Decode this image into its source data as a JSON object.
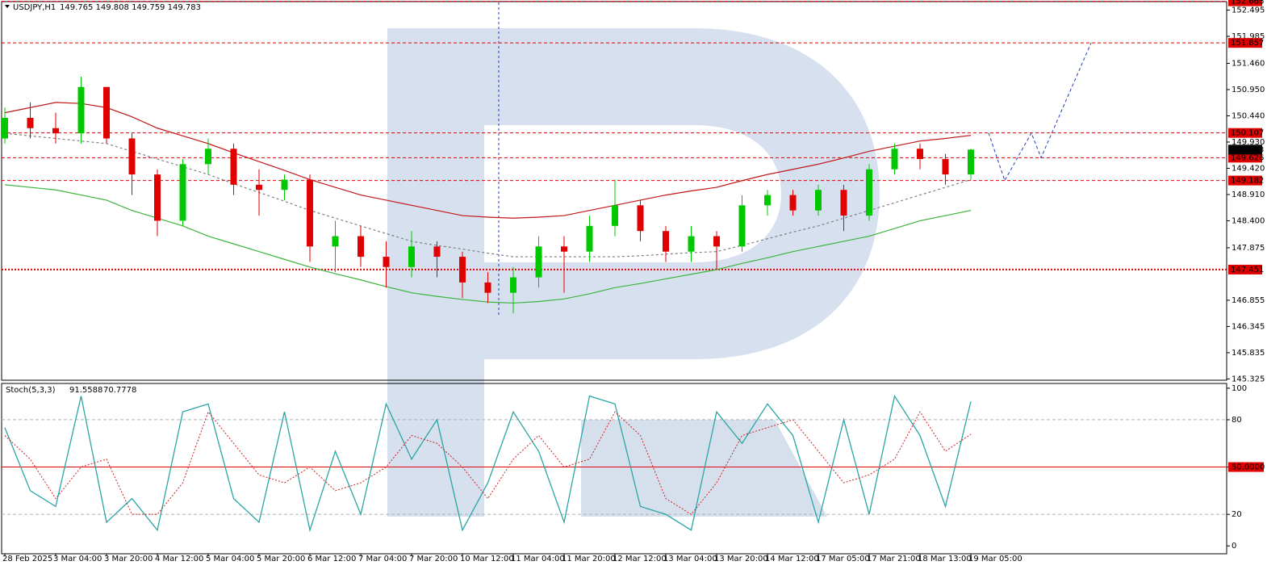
{
  "chart_data": {
    "type": "candlestick",
    "header": {
      "symbol": "USDJPY,H1",
      "quote": "149.765 149.808 149.759 149.783"
    },
    "categories": [
      "28 Feb 2025",
      null,
      "3 Mar 04:00",
      null,
      "3 Mar 20:00",
      null,
      "4 Mar 12:00",
      null,
      "5 Mar 04:00",
      null,
      "5 Mar 20:00",
      null,
      "6 Mar 12:00",
      null,
      "7 Mar 04:00",
      null,
      "7 Mar 20:00",
      null,
      "10 Mar 12:00",
      null,
      "11 Mar 04:00",
      null,
      "11 Mar 20:00",
      null,
      "12 Mar 12:00",
      null,
      "13 Mar 04:00",
      null,
      "13 Mar 20:00",
      null,
      "14 Mar 12:00",
      null,
      "17 Mar 05:00",
      null,
      "17 Mar 21:00",
      null,
      "18 Mar 13:00",
      null,
      "19 Mar 05:00"
    ],
    "open": [
      150.0,
      150.4,
      150.2,
      150.1,
      151.0,
      150.0,
      149.3,
      148.4,
      149.5,
      149.8,
      149.1,
      149.0,
      149.2,
      147.9,
      148.1,
      147.7,
      147.5,
      147.9,
      147.7,
      147.2,
      147.0,
      147.3,
      147.9,
      147.8,
      148.3,
      148.7,
      148.2,
      147.8,
      148.1,
      147.9,
      148.7,
      148.9,
      148.6,
      149.0,
      148.5,
      149.4,
      149.8,
      149.6,
      149.3
    ],
    "high": [
      150.6,
      150.7,
      150.5,
      151.2,
      151.0,
      150.1,
      149.4,
      149.6,
      150.0,
      149.9,
      149.4,
      149.3,
      149.3,
      148.4,
      148.3,
      148.0,
      148.2,
      148.0,
      147.8,
      147.4,
      147.5,
      148.1,
      148.1,
      148.5,
      149.2,
      148.8,
      148.3,
      148.3,
      148.2,
      148.9,
      149.0,
      149.0,
      149.1,
      149.1,
      149.5,
      149.9,
      149.9,
      149.7,
      149.8
    ],
    "low": [
      149.9,
      150.0,
      149.9,
      149.9,
      149.9,
      148.9,
      148.1,
      148.3,
      149.3,
      148.9,
      148.5,
      148.8,
      147.6,
      147.4,
      147.5,
      147.1,
      147.3,
      147.3,
      146.9,
      146.8,
      146.6,
      147.1,
      147.0,
      147.6,
      148.1,
      148.0,
      147.6,
      147.6,
      147.45,
      147.8,
      148.5,
      148.5,
      148.5,
      148.2,
      148.4,
      149.3,
      149.4,
      149.1,
      149.2
    ],
    "close": [
      150.4,
      150.2,
      150.1,
      151.0,
      150.0,
      149.3,
      148.4,
      149.5,
      149.8,
      149.1,
      149.0,
      149.2,
      147.9,
      148.1,
      147.7,
      147.5,
      147.9,
      147.7,
      147.2,
      147.0,
      147.3,
      147.9,
      147.8,
      148.3,
      148.7,
      148.2,
      147.8,
      148.1,
      147.9,
      148.7,
      148.9,
      148.6,
      149.0,
      148.5,
      149.4,
      149.8,
      149.6,
      149.3,
      149.783
    ],
    "up_color": "#00c800",
    "down_color": "#e00000",
    "ylim": [
      145.3,
      152.66
    ],
    "yticks": [
      152.495,
      151.985,
      {
        "value": 151.46,
        "label": "151.460"
      },
      {
        "value": 150.95,
        "label": "150.950"
      },
      {
        "value": 150.44,
        "label": "150.440"
      },
      {
        "value": 149.93,
        "label": "149.930"
      },
      {
        "value": 149.42,
        "label": "149.420"
      },
      {
        "value": 148.91,
        "label": "148.910"
      },
      {
        "value": 148.4,
        "label": "148.400"
      },
      147.875,
      146.855,
      146.345,
      145.835,
      145.325
    ],
    "levels": [
      152.666,
      151.857,
      150.107,
      149.626,
      149.182,
      147.451
    ],
    "level_color": "#e00000",
    "moving_averages": [
      {
        "color": "#c01818",
        "style": "solid",
        "values": [
          150.5,
          150.6,
          150.7,
          150.68,
          150.6,
          150.42,
          150.2,
          150.05,
          149.9,
          149.72,
          149.55,
          149.38,
          149.2,
          149.05,
          148.9,
          148.8,
          148.7,
          148.6,
          148.5,
          148.47,
          148.45,
          148.47,
          148.5,
          148.6,
          148.7,
          148.8,
          148.9,
          148.98,
          149.05,
          149.18,
          149.3,
          149.4,
          149.5,
          149.62,
          149.75,
          149.85,
          149.95,
          150.0,
          150.06
        ]
      },
      {
        "color": "#3cb43c",
        "style": "solid",
        "values": [
          149.1,
          149.05,
          149.0,
          148.9,
          148.8,
          148.6,
          148.45,
          148.3,
          148.1,
          147.95,
          147.8,
          147.65,
          147.5,
          147.37,
          147.25,
          147.12,
          147.0,
          146.93,
          146.87,
          146.82,
          146.8,
          146.83,
          146.88,
          146.98,
          147.1,
          147.18,
          147.27,
          147.36,
          147.45,
          147.57,
          147.68,
          147.8,
          147.9,
          148.0,
          148.1,
          148.25,
          148.4,
          148.5,
          148.6
        ]
      },
      {
        "color": "#808080",
        "style": "dotted",
        "values": [
          150.1,
          150.05,
          150.0,
          149.95,
          149.9,
          149.75,
          149.6,
          149.45,
          149.3,
          149.12,
          148.95,
          148.78,
          148.6,
          148.45,
          148.3,
          148.15,
          148.0,
          147.92,
          147.85,
          147.77,
          147.7,
          147.7,
          147.7,
          147.7,
          147.7,
          147.72,
          147.75,
          147.78,
          147.8,
          147.92,
          148.05,
          148.18,
          148.3,
          148.45,
          148.6,
          148.75,
          148.9,
          149.05,
          149.2
        ]
      }
    ],
    "forecast": {
      "color": "#1f3fbf",
      "values": [
        150.107,
        149.182,
        150.107,
        149.626,
        151.857
      ]
    },
    "stochastic": {
      "type": "line",
      "title": "Stoch(5,3,3)",
      "ylim": [
        -5,
        103
      ],
      "yticks": [
        0,
        20,
        {
          "value": 50,
          "label": "50.0000"
        },
        80,
        100
      ],
      "main": {
        "color": "#2aa5a5",
        "values": [
          75,
          35,
          25,
          95,
          15,
          30,
          10,
          85,
          90,
          30,
          15,
          85,
          10,
          60,
          20,
          90,
          55,
          80,
          10,
          40,
          85,
          60,
          15,
          95,
          90,
          25,
          20,
          10,
          85,
          65,
          90,
          70,
          15,
          80,
          20,
          95,
          70,
          25,
          91.5588
        ]
      },
      "signal": {
        "color": "#d02020",
        "values": [
          70,
          55,
          30,
          50,
          55,
          20,
          20,
          40,
          85,
          65,
          45,
          40,
          50,
          35,
          40,
          50,
          70,
          65,
          50,
          30,
          55,
          70,
          50,
          55,
          85,
          70,
          30,
          20,
          40,
          70,
          75,
          80,
          60,
          40,
          45,
          55,
          85,
          60,
          70.7778
        ]
      }
    }
  }
}
